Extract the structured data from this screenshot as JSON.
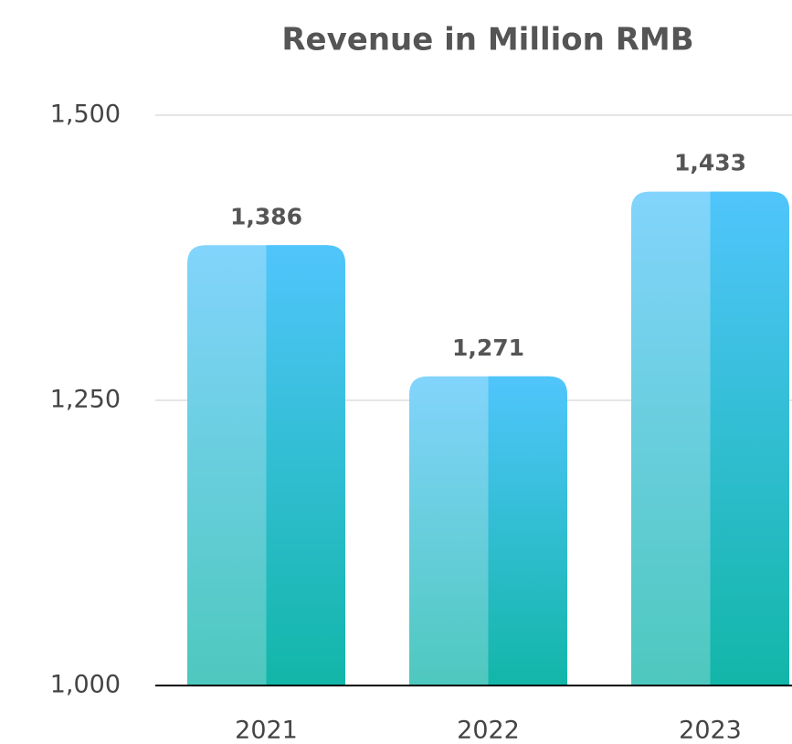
{
  "chart_data": {
    "type": "bar",
    "title": "Revenue in Million RMB",
    "categories": [
      "2021",
      "2022",
      "2023"
    ],
    "values": [
      1386,
      1271,
      1433
    ],
    "value_labels": [
      "1,386",
      "1,271",
      "1,433"
    ],
    "color": "#1ab8ad",
    "ylim": [
      1000,
      1500
    ],
    "yticks": [
      {
        "value": 1000,
        "label": "1,000"
      },
      {
        "value": 1250,
        "label": "1,250"
      },
      {
        "value": 1500,
        "label": "1,500"
      }
    ],
    "grid": true
  }
}
